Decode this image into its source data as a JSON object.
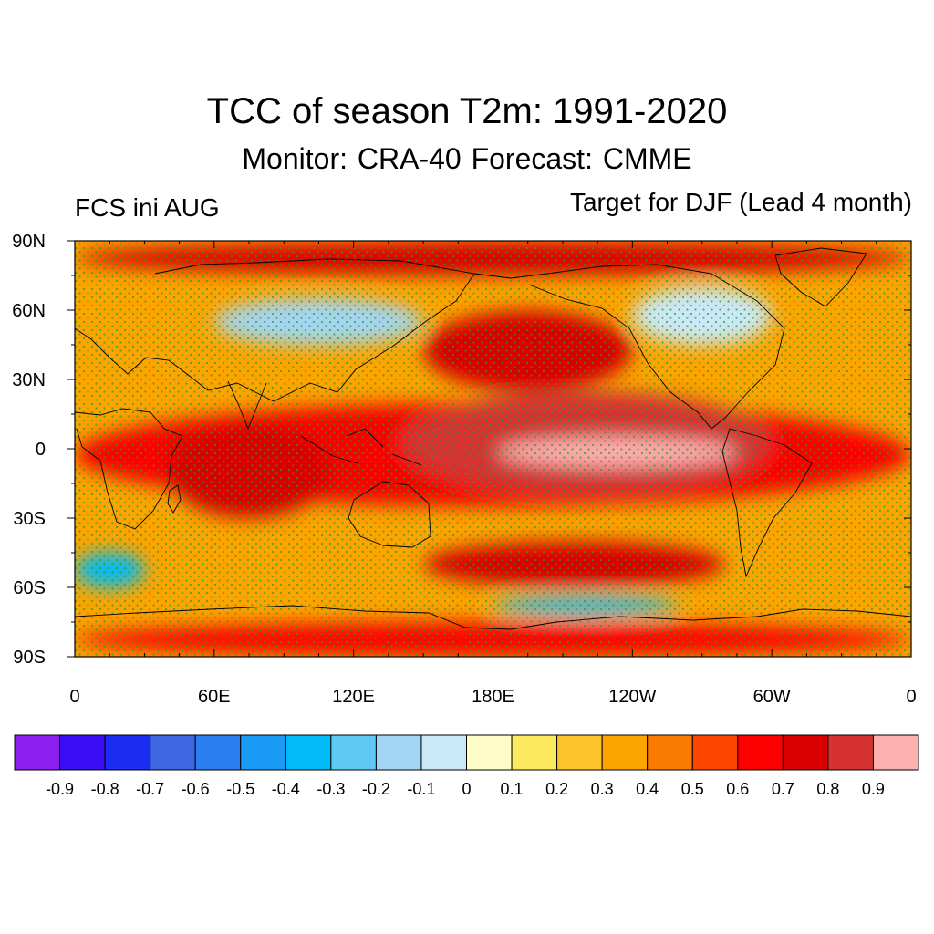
{
  "title": "TCC of season T2m: 1991-2020",
  "subtitle": "Monitor: CRA-40   Forecast: CMME",
  "left_string": "FCS ini AUG",
  "right_string": "Target for DJF (Lead 4 month)",
  "chart_data": {
    "type": "heatmap",
    "projection": "cylindrical equidistant, 0 to 360 longitude",
    "x_ticks": [
      "0",
      "60E",
      "120E",
      "180E",
      "120W",
      "60W",
      "0"
    ],
    "x_tick_lons": [
      0,
      60,
      120,
      180,
      240,
      300,
      360
    ],
    "y_ticks": [
      "90N",
      "60N",
      "30N",
      "0",
      "30S",
      "60S",
      "90S"
    ],
    "y_tick_lats": [
      90,
      60,
      30,
      0,
      -30,
      -60,
      -90
    ],
    "xlim": [
      0,
      360
    ],
    "ylim": [
      -90,
      90
    ],
    "colorbar": {
      "labels": [
        "-0.9",
        "-0.8",
        "-0.7",
        "-0.6",
        "-0.5",
        "-0.4",
        "-0.3",
        "-0.2",
        "-0.1",
        "0",
        "0.1",
        "0.2",
        "0.3",
        "0.4",
        "0.5",
        "0.6",
        "0.7",
        "0.8",
        "0.9"
      ],
      "colors": [
        "#8c1ff0",
        "#3a0df5",
        "#1b2df0",
        "#3f67e4",
        "#2b7ef0",
        "#1a99f5",
        "#00bbf8",
        "#5ec8f5",
        "#a3d5f4",
        "#cbe8f8",
        "#fdfcc6",
        "#fde95e",
        "#fdc52a",
        "#fca400",
        "#fb7c00",
        "#fb4500",
        "#fc0000",
        "#d80000",
        "#d73232",
        "#fdb0b0"
      ]
    },
    "stippling": "significant correlation (green dots)",
    "stipple_color": "#2a9a2a",
    "regions": [
      {
        "name": "tropical-pacific-core",
        "lon": [
          182,
          285
        ],
        "lat": [
          -8,
          5
        ],
        "value": 0.95
      },
      {
        "name": "tropical-pacific",
        "lon": [
          140,
          300
        ],
        "lat": [
          -20,
          25
        ],
        "value": 0.85
      },
      {
        "name": "tropical-band",
        "lon": [
          0,
          360
        ],
        "lat": [
          -25,
          20
        ],
        "value": 0.65
      },
      {
        "name": "indian-ocean",
        "lon": [
          40,
          110
        ],
        "lat": [
          -30,
          10
        ],
        "value": 0.75
      },
      {
        "name": "north-pacific",
        "lon": [
          150,
          240
        ],
        "lat": [
          25,
          60
        ],
        "value": 0.75
      },
      {
        "name": "southern-ocean",
        "lon": [
          150,
          280
        ],
        "lat": [
          -60,
          -40
        ],
        "value": 0.7
      },
      {
        "name": "arctic-band",
        "lon": [
          0,
          360
        ],
        "lat": [
          75,
          90
        ],
        "value": 0.7
      },
      {
        "name": "antarctic-band",
        "lon": [
          0,
          360
        ],
        "lat": [
          -90,
          -75
        ],
        "value": 0.6
      },
      {
        "name": "siberia",
        "lon": [
          60,
          150
        ],
        "lat": [
          45,
          65
        ],
        "value": -0.2
      },
      {
        "name": "canada",
        "lon": [
          240,
          300
        ],
        "lat": [
          45,
          70
        ],
        "value": -0.1
      },
      {
        "name": "south-atlantic",
        "lon": [
          0,
          30
        ],
        "lat": [
          -60,
          -45
        ],
        "value": -0.3
      },
      {
        "name": "antarctic-coast",
        "lon": [
          180,
          260
        ],
        "lat": [
          -72,
          -64
        ],
        "value": -0.3
      }
    ]
  }
}
